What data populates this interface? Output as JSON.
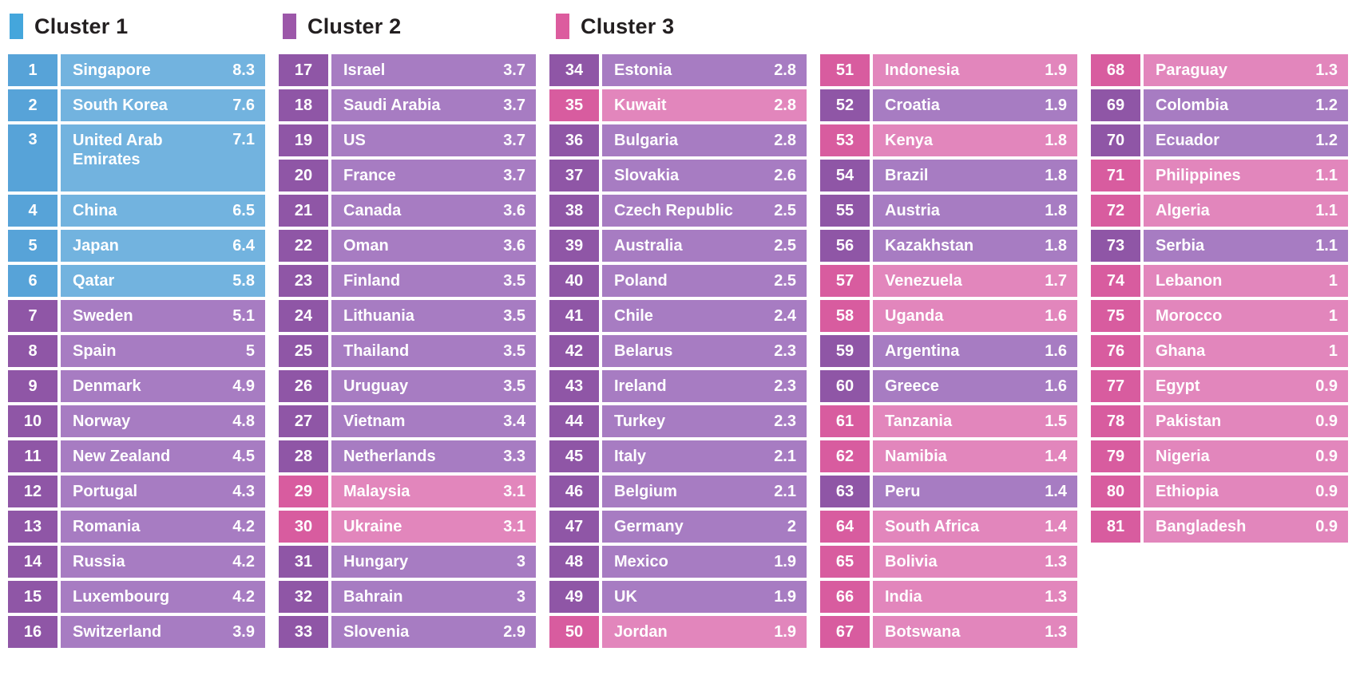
{
  "chart_data": {
    "type": "table",
    "legend": [
      {
        "label": "Cluster 1",
        "color": "#44A6DC"
      },
      {
        "label": "Cluster 2",
        "color": "#9C57A9"
      },
      {
        "label": "Cluster 3",
        "color": "#DC5C9E"
      }
    ],
    "clusters": {
      "c1": {
        "rank_bg": "#57A3D8",
        "cell_bg": "#72B3DF"
      },
      "c2": {
        "rank_bg": "#8F56A6",
        "cell_bg": "#A77CC2"
      },
      "c3": {
        "rank_bg": "#D85C9F",
        "cell_bg": "#E286BC"
      }
    },
    "columns": [
      [
        {
          "rank": "1",
          "name": "Singapore",
          "value": "8.3",
          "cluster": 1
        },
        {
          "rank": "2",
          "name": "South Korea",
          "value": "7.6",
          "cluster": 1
        },
        {
          "rank": "3",
          "name": "United Arab Emirates",
          "value": "7.1",
          "cluster": 1,
          "tall": true
        },
        {
          "rank": "4",
          "name": "China",
          "value": "6.5",
          "cluster": 1
        },
        {
          "rank": "5",
          "name": "Japan",
          "value": "6.4",
          "cluster": 1
        },
        {
          "rank": "6",
          "name": "Qatar",
          "value": "5.8",
          "cluster": 1
        },
        {
          "rank": "7",
          "name": "Sweden",
          "value": "5.1",
          "cluster": 2
        },
        {
          "rank": "8",
          "name": "Spain",
          "value": "5",
          "cluster": 2
        },
        {
          "rank": "9",
          "name": "Denmark",
          "value": "4.9",
          "cluster": 2
        },
        {
          "rank": "10",
          "name": "Norway",
          "value": "4.8",
          "cluster": 2
        },
        {
          "rank": "11",
          "name": "New Zealand",
          "value": "4.5",
          "cluster": 2
        },
        {
          "rank": "12",
          "name": "Portugal",
          "value": "4.3",
          "cluster": 2
        },
        {
          "rank": "13",
          "name": "Romania",
          "value": "4.2",
          "cluster": 2
        },
        {
          "rank": "14",
          "name": "Russia",
          "value": "4.2",
          "cluster": 2
        },
        {
          "rank": "15",
          "name": "Luxembourg",
          "value": "4.2",
          "cluster": 2
        },
        {
          "rank": "16",
          "name": "Switzerland",
          "value": "3.9",
          "cluster": 2
        }
      ],
      [
        {
          "rank": "17",
          "name": "Israel",
          "value": "3.7",
          "cluster": 2
        },
        {
          "rank": "18",
          "name": "Saudi Arabia",
          "value": "3.7",
          "cluster": 2
        },
        {
          "rank": "19",
          "name": "US",
          "value": "3.7",
          "cluster": 2
        },
        {
          "rank": "20",
          "name": "France",
          "value": "3.7",
          "cluster": 2
        },
        {
          "rank": "21",
          "name": "Canada",
          "value": "3.6",
          "cluster": 2
        },
        {
          "rank": "22",
          "name": "Oman",
          "value": "3.6",
          "cluster": 2
        },
        {
          "rank": "23",
          "name": "Finland",
          "value": "3.5",
          "cluster": 2
        },
        {
          "rank": "24",
          "name": "Lithuania",
          "value": "3.5",
          "cluster": 2
        },
        {
          "rank": "25",
          "name": "Thailand",
          "value": "3.5",
          "cluster": 2
        },
        {
          "rank": "26",
          "name": "Uruguay",
          "value": "3.5",
          "cluster": 2
        },
        {
          "rank": "27",
          "name": "Vietnam",
          "value": "3.4",
          "cluster": 2
        },
        {
          "rank": "28",
          "name": "Netherlands",
          "value": "3.3",
          "cluster": 2
        },
        {
          "rank": "29",
          "name": "Malaysia",
          "value": "3.1",
          "cluster": 3
        },
        {
          "rank": "30",
          "name": "Ukraine",
          "value": "3.1",
          "cluster": 3
        },
        {
          "rank": "31",
          "name": "Hungary",
          "value": "3",
          "cluster": 2
        },
        {
          "rank": "32",
          "name": "Bahrain",
          "value": "3",
          "cluster": 2
        },
        {
          "rank": "33",
          "name": "Slovenia",
          "value": "2.9",
          "cluster": 2
        }
      ],
      [
        {
          "rank": "34",
          "name": "Estonia",
          "value": "2.8",
          "cluster": 2
        },
        {
          "rank": "35",
          "name": "Kuwait",
          "value": "2.8",
          "cluster": 3
        },
        {
          "rank": "36",
          "name": "Bulgaria",
          "value": "2.8",
          "cluster": 2
        },
        {
          "rank": "37",
          "name": "Slovakia",
          "value": "2.6",
          "cluster": 2
        },
        {
          "rank": "38",
          "name": "Czech Republic",
          "value": "2.5",
          "cluster": 2
        },
        {
          "rank": "39",
          "name": "Australia",
          "value": "2.5",
          "cluster": 2
        },
        {
          "rank": "40",
          "name": "Poland",
          "value": "2.5",
          "cluster": 2
        },
        {
          "rank": "41",
          "name": "Chile",
          "value": "2.4",
          "cluster": 2
        },
        {
          "rank": "42",
          "name": "Belarus",
          "value": "2.3",
          "cluster": 2
        },
        {
          "rank": "43",
          "name": "Ireland",
          "value": "2.3",
          "cluster": 2
        },
        {
          "rank": "44",
          "name": "Turkey",
          "value": "2.3",
          "cluster": 2
        },
        {
          "rank": "45",
          "name": "Italy",
          "value": "2.1",
          "cluster": 2
        },
        {
          "rank": "46",
          "name": "Belgium",
          "value": "2.1",
          "cluster": 2
        },
        {
          "rank": "47",
          "name": "Germany",
          "value": "2",
          "cluster": 2
        },
        {
          "rank": "48",
          "name": "Mexico",
          "value": "1.9",
          "cluster": 2
        },
        {
          "rank": "49",
          "name": "UK",
          "value": "1.9",
          "cluster": 2
        },
        {
          "rank": "50",
          "name": "Jordan",
          "value": "1.9",
          "cluster": 3
        }
      ],
      [
        {
          "rank": "51",
          "name": "Indonesia",
          "value": "1.9",
          "cluster": 3
        },
        {
          "rank": "52",
          "name": "Croatia",
          "value": "1.9",
          "cluster": 2
        },
        {
          "rank": "53",
          "name": "Kenya",
          "value": "1.8",
          "cluster": 3
        },
        {
          "rank": "54",
          "name": "Brazil",
          "value": "1.8",
          "cluster": 2
        },
        {
          "rank": "55",
          "name": "Austria",
          "value": "1.8",
          "cluster": 2
        },
        {
          "rank": "56",
          "name": "Kazakhstan",
          "value": "1.8",
          "cluster": 2
        },
        {
          "rank": "57",
          "name": "Venezuela",
          "value": "1.7",
          "cluster": 3
        },
        {
          "rank": "58",
          "name": "Uganda",
          "value": "1.6",
          "cluster": 3
        },
        {
          "rank": "59",
          "name": "Argentina",
          "value": "1.6",
          "cluster": 2
        },
        {
          "rank": "60",
          "name": "Greece",
          "value": "1.6",
          "cluster": 2
        },
        {
          "rank": "61",
          "name": "Tanzania",
          "value": "1.5",
          "cluster": 3
        },
        {
          "rank": "62",
          "name": "Namibia",
          "value": "1.4",
          "cluster": 3
        },
        {
          "rank": "63",
          "name": "Peru",
          "value": "1.4",
          "cluster": 2
        },
        {
          "rank": "64",
          "name": "South Africa",
          "value": "1.4",
          "cluster": 3
        },
        {
          "rank": "65",
          "name": "Bolivia",
          "value": "1.3",
          "cluster": 3
        },
        {
          "rank": "66",
          "name": "India",
          "value": "1.3",
          "cluster": 3
        },
        {
          "rank": "67",
          "name": "Botswana",
          "value": "1.3",
          "cluster": 3
        }
      ],
      [
        {
          "rank": "68",
          "name": "Paraguay",
          "value": "1.3",
          "cluster": 3
        },
        {
          "rank": "69",
          "name": "Colombia",
          "value": "1.2",
          "cluster": 2
        },
        {
          "rank": "70",
          "name": "Ecuador",
          "value": "1.2",
          "cluster": 2
        },
        {
          "rank": "71",
          "name": "Philippines",
          "value": "1.1",
          "cluster": 3
        },
        {
          "rank": "72",
          "name": "Algeria",
          "value": "1.1",
          "cluster": 3
        },
        {
          "rank": "73",
          "name": "Serbia",
          "value": "1.1",
          "cluster": 2
        },
        {
          "rank": "74",
          "name": "Lebanon",
          "value": "1",
          "cluster": 3
        },
        {
          "rank": "75",
          "name": "Morocco",
          "value": "1",
          "cluster": 3
        },
        {
          "rank": "76",
          "name": "Ghana",
          "value": "1",
          "cluster": 3
        },
        {
          "rank": "77",
          "name": "Egypt",
          "value": "0.9",
          "cluster": 3
        },
        {
          "rank": "78",
          "name": "Pakistan",
          "value": "0.9",
          "cluster": 3
        },
        {
          "rank": "79",
          "name": "Nigeria",
          "value": "0.9",
          "cluster": 3
        },
        {
          "rank": "80",
          "name": "Ethiopia",
          "value": "0.9",
          "cluster": 3
        },
        {
          "rank": "81",
          "name": "Bangladesh",
          "value": "0.9",
          "cluster": 3
        }
      ]
    ]
  }
}
